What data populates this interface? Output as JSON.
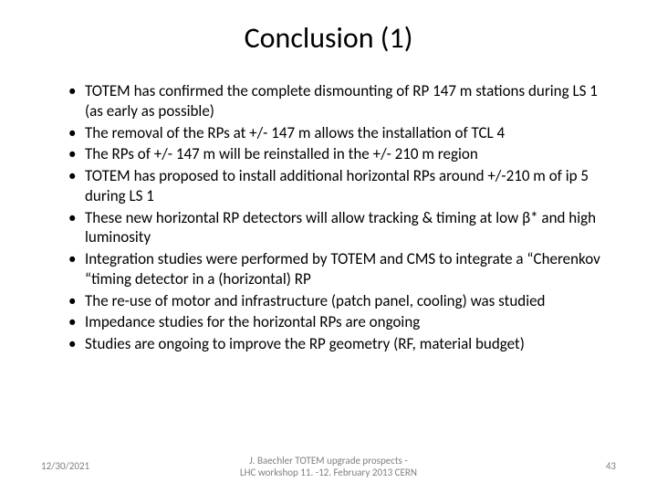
{
  "title": "Conclusion (1)",
  "bullets": [
    "TOTEM has confirmed the complete dismounting of RP 147 m stations during LS 1 (as early as possible)",
    "The removal of the RPs  at +/- 147 m allows the installation of TCL 4",
    "The RPs of +/- 147 m will be reinstalled in the +/- 210 m region",
    " TOTEM  has proposed to install additional horizontal RPs around  +/-210 m of ip 5 during LS 1",
    "These new horizontal RP detectors will allow tracking & timing at low β* and high luminosity",
    "Integration studies were performed  by TOTEM and CMS to integrate a “Cherenkov “timing detector in a (horizontal) RP",
    " The re-use of motor and infrastructure (patch panel, cooling) was studied",
    "Impedance studies for the horizontal RPs are ongoing",
    "Studies are ongoing to improve the RP geometry  (RF, material budget)"
  ],
  "footer": {
    "date": "12/30/2021",
    "center_line1": "J. Baechler   TOTEM upgrade prospects -",
    "center_line2": "LHC workshop 11. -12. February 2013 CERN",
    "page": "43"
  },
  "style": {
    "background_color": "#ffffff",
    "text_color": "#000000",
    "footer_color": "#808080",
    "title_fontsize": 32,
    "body_fontsize": 17,
    "footer_fontsize": 11
  }
}
